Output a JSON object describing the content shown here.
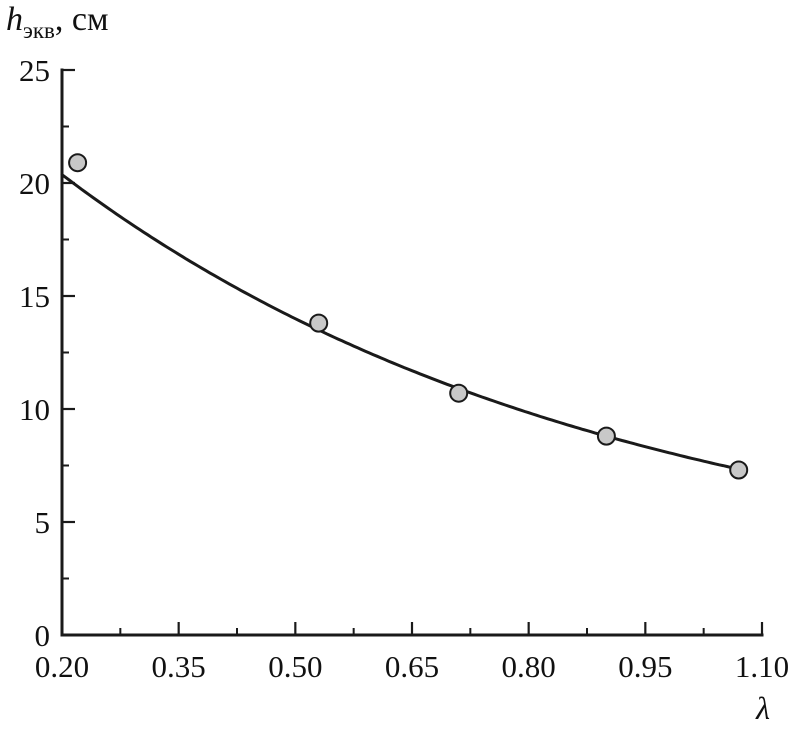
{
  "chart_data": {
    "type": "scatter",
    "title": "",
    "ylabel": "hэкв, см",
    "ylabel_symbol": "h",
    "ylabel_subscript": "экв",
    "ylabel_units": ", см",
    "xlabel": "λ",
    "xlim": [
      0.2,
      1.1
    ],
    "ylim": [
      0,
      25
    ],
    "x_ticks": [
      0.2,
      0.35,
      0.5,
      0.65,
      0.8,
      0.95,
      1.1
    ],
    "x_tick_labels": [
      "0.20",
      "0.35",
      "0.50",
      "0.65",
      "0.80",
      "0.95",
      "1.10"
    ],
    "x_minor_ticks": [
      0.275,
      0.425,
      0.575,
      0.725,
      0.875,
      1.025
    ],
    "y_ticks": [
      0,
      5,
      10,
      15,
      20,
      25
    ],
    "y_tick_labels": [
      "0",
      "5",
      "10",
      "15",
      "20",
      "25"
    ],
    "y_minor_ticks": [
      2.5,
      7.5,
      12.5,
      17.5,
      22.5
    ],
    "points": [
      {
        "x": 0.22,
        "y": 20.9
      },
      {
        "x": 0.53,
        "y": 13.8
      },
      {
        "x": 0.71,
        "y": 10.7
      },
      {
        "x": 0.9,
        "y": 8.8
      },
      {
        "x": 1.07,
        "y": 7.3
      }
    ],
    "fit_curve": {
      "model": "a*exp(-b*x)+c",
      "a": 24.4,
      "b": 1.42,
      "c": 2.0,
      "x_start": 0.2,
      "x_end": 1.08
    },
    "style": {
      "axis_color": "#1a1a1a",
      "curve_color": "#1a1a1a",
      "marker_fill": "#c8c8c8",
      "marker_stroke": "#1a1a1a",
      "marker_radius_px": 8.5
    },
    "grid": false,
    "legend_position": "none"
  }
}
